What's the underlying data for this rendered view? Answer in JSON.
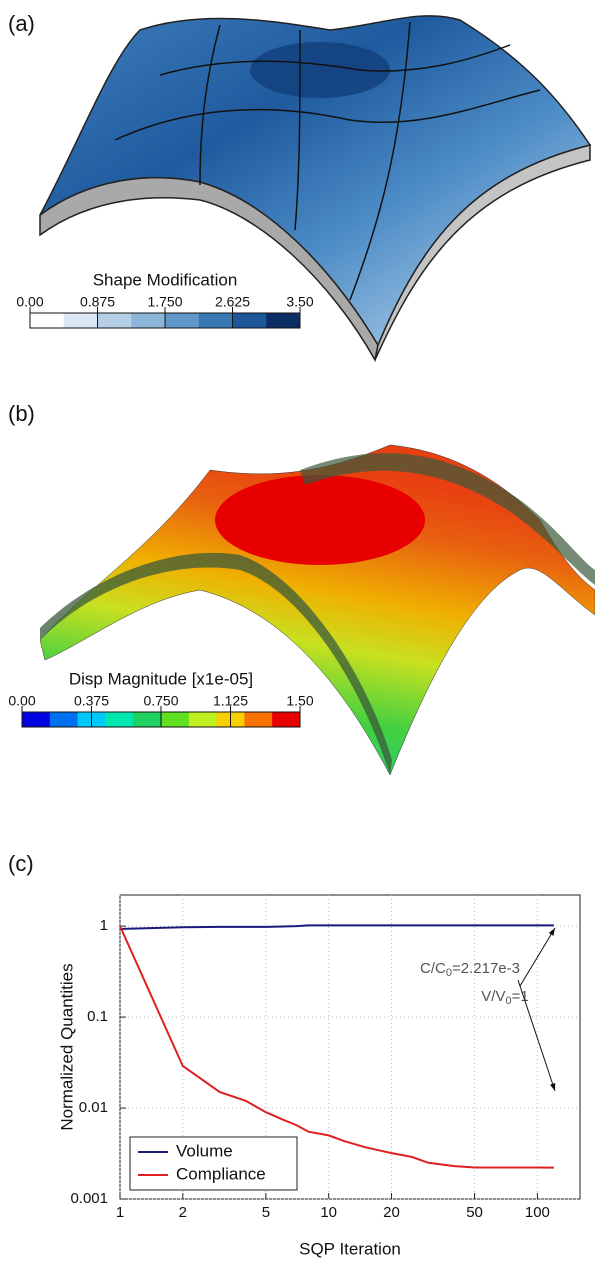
{
  "panel_labels": [
    "(a)",
    "(b)",
    "(c)"
  ],
  "chart_data": [
    {
      "type": "colorbar",
      "title": "Shape Modification",
      "xlim": [
        0,
        3.5
      ],
      "xticks": [
        {
          "value": 0,
          "label": "0.00"
        },
        {
          "value": 0.875,
          "label": "0.875"
        },
        {
          "value": 1.75,
          "label": "1.750"
        },
        {
          "value": 2.625,
          "label": "2.625"
        },
        {
          "value": 3.5,
          "label": "3.50"
        }
      ],
      "colors": [
        "#ffffff",
        "#dbe7f3",
        "#b5cfe7",
        "#8db6da",
        "#5f98c9",
        "#3a78b5",
        "#1c579a",
        "#0b2e65"
      ]
    },
    {
      "type": "colorbar",
      "title": "Disp Magnitude [x1e-05]",
      "xlim": [
        0,
        1.5
      ],
      "xticks": [
        {
          "value": 0,
          "label": "0.00"
        },
        {
          "value": 0.375,
          "label": "0.375"
        },
        {
          "value": 0.75,
          "label": "0.750"
        },
        {
          "value": 1.125,
          "label": "1.125"
        },
        {
          "value": 1.5,
          "label": "1.50"
        }
      ],
      "colors": [
        "#0000e0",
        "#0070f0",
        "#00c8f8",
        "#00e8b0",
        "#20d060",
        "#60e020",
        "#c0f020",
        "#f8d000",
        "#f87000",
        "#e80000"
      ]
    },
    {
      "type": "line",
      "x_label": "SQP Iteration",
      "y_label": "Normalized Quantities",
      "log_x": true,
      "log_y": true,
      "grid": true,
      "legend": "lower left",
      "xlim": [
        1,
        160
      ],
      "xticks": [
        1,
        2,
        5,
        10,
        20,
        50,
        100
      ],
      "ylim": [
        0.001,
        2.2
      ],
      "yticks": [
        0.001,
        0.01,
        0.1,
        1
      ],
      "x": [
        1,
        2,
        3,
        4,
        5,
        6,
        7,
        8,
        10,
        12,
        15,
        20,
        25,
        30,
        40,
        50,
        70,
        100,
        120
      ],
      "series": [
        {
          "name": "Volume",
          "color": "#1a1a7a",
          "values": [
            0.93,
            0.97,
            0.98,
            0.98,
            0.98,
            0.99,
            1.0,
            1.02,
            1.02,
            1.02,
            1.02,
            1.02,
            1.02,
            1.02,
            1.02,
            1.02,
            1.02,
            1.02,
            1.02
          ]
        },
        {
          "name": "Compliance",
          "color": "#e02020",
          "values": [
            1,
            0.029,
            0.015,
            0.012,
            0.009,
            0.0075,
            0.0065,
            0.0055,
            0.005,
            0.0043,
            0.0037,
            0.0032,
            0.0029,
            0.0025,
            0.0023,
            0.00222,
            0.00222,
            0.00222,
            0.002217
          ]
        }
      ],
      "annotations": [
        [
          "V/V",
          "0",
          "=1"
        ],
        [
          "C/C",
          "0",
          "=2.217e-3"
        ]
      ]
    }
  ]
}
